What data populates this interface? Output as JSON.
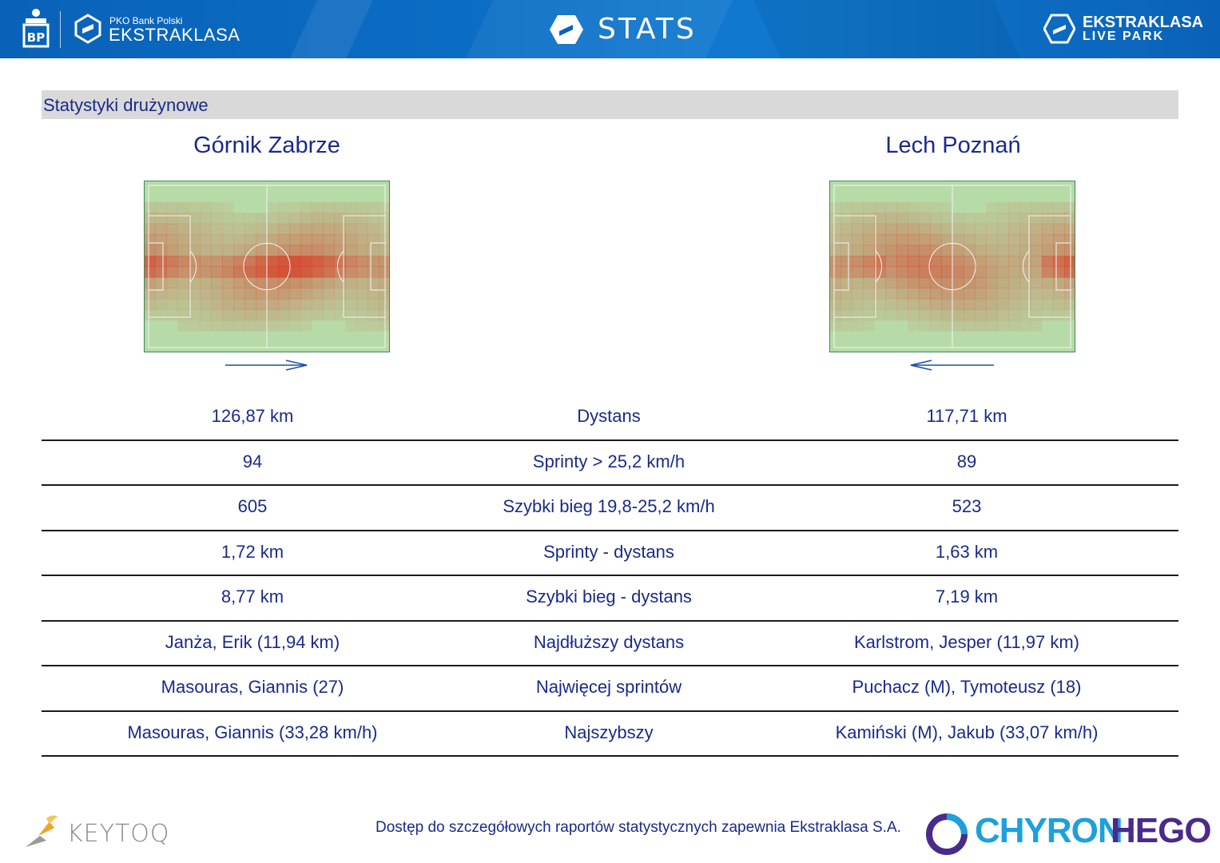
{
  "header": {
    "pko_small": "PKO Bank Polski",
    "ekstraklasa": "EKSTRAKLASA",
    "stats_title": "STATS",
    "livepark_top": "EKSTRAKLASA",
    "livepark_bottom": "LIVE PARK",
    "icons": [
      "pko-logo-icon",
      "ekstraklasa-ball-icon",
      "stats-e-icon",
      "livepark-e-icon"
    ]
  },
  "section": {
    "title": "Statystyki drużynowe"
  },
  "teams": {
    "left": {
      "name": "Górnik Zabrze",
      "direction": "right"
    },
    "right": {
      "name": "Lech Poznań",
      "direction": "left"
    }
  },
  "colors": {
    "brand_blue": "#0a62b8",
    "text_navy": "#1a2a8a",
    "pitch_green": "#a9d4a0",
    "heat_red": "#d9341e"
  },
  "stats": [
    {
      "left": "126,87 km",
      "label": "Dystans",
      "right": "117,71 km"
    },
    {
      "left": "94",
      "label": "Sprinty > 25,2 km/h",
      "right": "89"
    },
    {
      "left": "605",
      "label": "Szybki bieg 19,8-25,2 km/h",
      "right": "523"
    },
    {
      "left": "1,72 km",
      "label": "Sprinty - dystans",
      "right": "1,63 km"
    },
    {
      "left": "8,77 km",
      "label": "Szybki bieg - dystans",
      "right": "7,19 km"
    },
    {
      "left": "Janża, Erik (11,94 km)",
      "label": "Najdłuższy dystans",
      "right": "Karlstrom, Jesper (11,97 km)"
    },
    {
      "left": "Masouras, Giannis (27)",
      "label": "Najwięcej sprintów",
      "right": "Puchacz (M), Tymoteusz (18)"
    },
    {
      "left": "Masouras, Giannis (33,28 km/h)",
      "label": "Najszybszy",
      "right": "Kamiński (M), Jakub (33,07 km/h)"
    }
  ],
  "footer": {
    "note": "Dostęp do szczegółowych raportów statystycznych zapewnia Ekstraklasa S.A.",
    "keytoq": "KEYTOQ",
    "chyron_a": "CHYRON",
    "chyron_b": "HEGO"
  }
}
